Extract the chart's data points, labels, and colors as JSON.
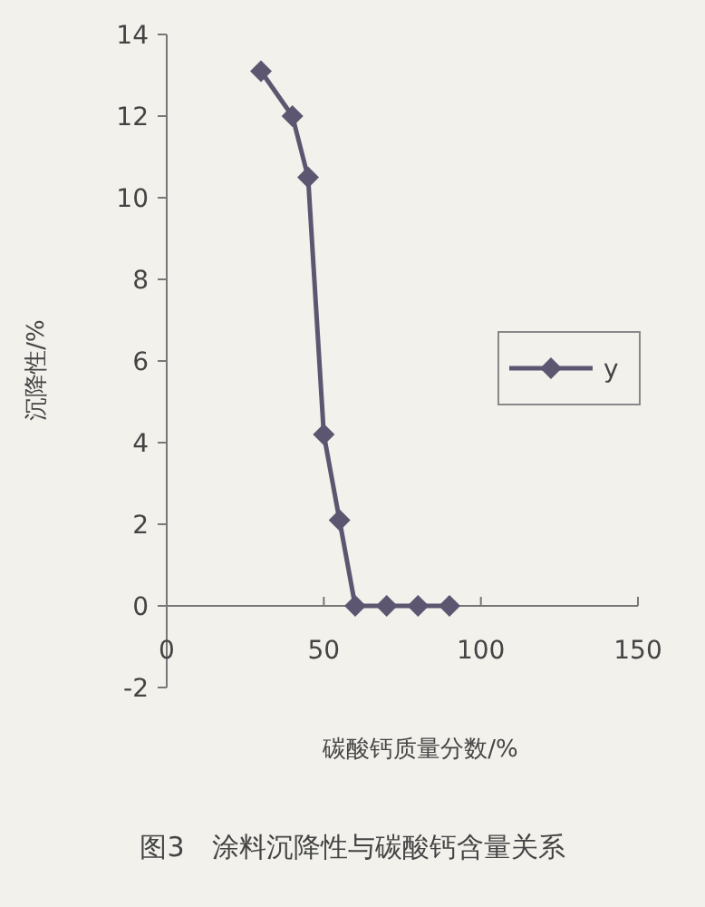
{
  "chart_data": {
    "type": "line",
    "title": "图3　涂料沉降性与碳酸钙含量关系",
    "xlabel": "碳酸钙质量分数/%",
    "ylabel": "沉降性/%",
    "x": [
      30,
      40,
      45,
      50,
      55,
      60,
      70,
      80,
      90
    ],
    "series": [
      {
        "name": "y",
        "color": "#5c5670",
        "values": [
          13.1,
          12.0,
          10.5,
          4.2,
          2.1,
          0,
          0,
          0,
          0
        ]
      }
    ],
    "xlim": [
      0,
      150
    ],
    "xticks": [
      0,
      50,
      100,
      150
    ],
    "ylim": [
      -2,
      14
    ],
    "yticks": [
      -2,
      0,
      2,
      4,
      6,
      8,
      10,
      12,
      14
    ],
    "legend": "right",
    "marker": "diamond",
    "line_style": "solid",
    "grid": false
  }
}
